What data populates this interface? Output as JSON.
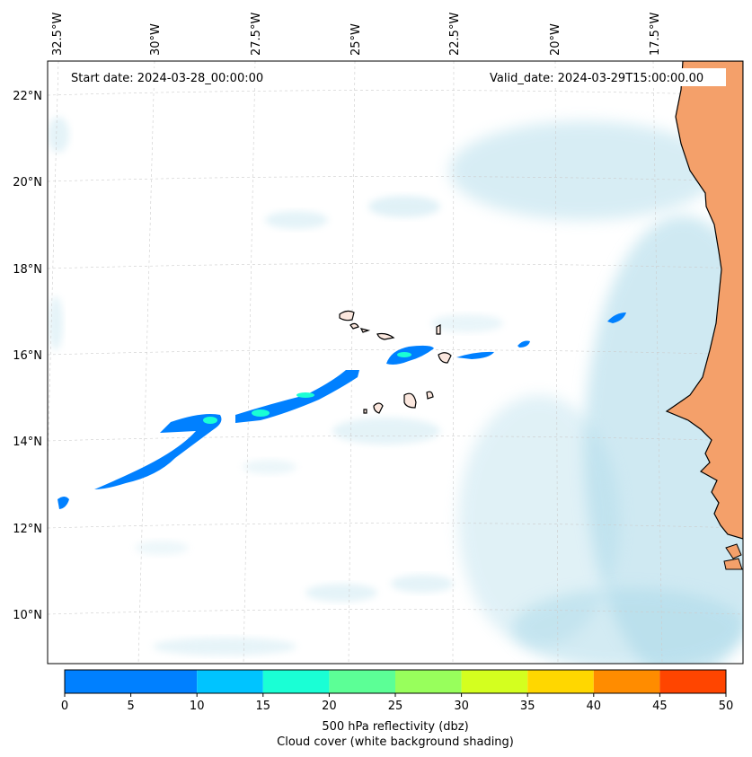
{
  "map": {
    "start_date": "Start date: 2024-03-28_00:00:00",
    "valid_date": "Valid_date: 2024-03-29T15:00:00.00",
    "lon_labels": [
      "32.5°W",
      "30°W",
      "27.5°W",
      "25°W",
      "22.5°W",
      "20°W",
      "17.5°W"
    ],
    "lat_labels": [
      "22°N",
      "20°N",
      "18°N",
      "16°N",
      "14°N",
      "12°N",
      "10°N"
    ],
    "land_color": "#f4a06a",
    "reflectivity_color": "#0080ff",
    "reflectivity_core_color": "#19ffd0",
    "cloud_color": "#a8d8e8"
  },
  "colorbar": {
    "ticks": [
      "0",
      "5",
      "10",
      "15",
      "20",
      "25",
      "30",
      "35",
      "40",
      "45",
      "50"
    ],
    "colors": [
      "#0080ff",
      "#00c4ff",
      "#1affd5",
      "#5cff96",
      "#98ff5c",
      "#d4ff1f",
      "#ffd700",
      "#ff8c00",
      "#ff4500"
    ],
    "label_line1": "500 hPa reflectivity (dbz)",
    "label_line2": "Cloud cover (white background shading)"
  }
}
